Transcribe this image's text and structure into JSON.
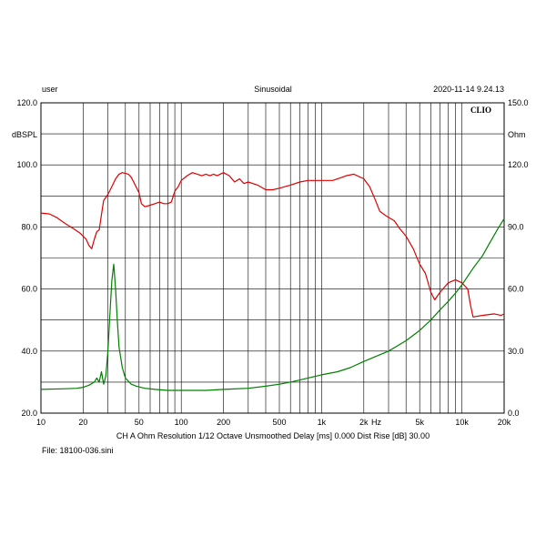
{
  "header": {
    "left": "user",
    "center": "Sinusoidal",
    "right": "2020-11-14 9.24.13"
  },
  "logo": "CLIO",
  "footer": {
    "settings": "CH A   Ohm   Resolution 1/12 Octave   Unsmoothed   Delay [ms] 0.000   Dist Rise [dB] 30.00",
    "file": "File: 18100-036.sini"
  },
  "colors": {
    "spl": "#e00000",
    "impedance": "#008000",
    "grid": "#000000"
  },
  "chart_data": {
    "type": "line",
    "xscale": "log",
    "xlim": [
      10,
      20000
    ],
    "grid": true,
    "xlabel_unit": "Hz",
    "x_ticks": [
      {
        "value": 10,
        "label": "10"
      },
      {
        "value": 20,
        "label": "20"
      },
      {
        "value": 50,
        "label": "50"
      },
      {
        "value": 100,
        "label": "100"
      },
      {
        "value": 200,
        "label": "200"
      },
      {
        "value": 500,
        "label": "500"
      },
      {
        "value": 1000,
        "label": "1k"
      },
      {
        "value": 2000,
        "label": "2k"
      },
      {
        "value": 5000,
        "label": "5k"
      },
      {
        "value": 10000,
        "label": "10k"
      },
      {
        "value": 20000,
        "label": "20k"
      }
    ],
    "y_left": {
      "label": "dBSPL",
      "ylim": [
        20,
        120
      ],
      "ticks": [
        {
          "value": 120,
          "label": "120.0"
        },
        {
          "value": 100,
          "label": "100.0"
        },
        {
          "value": 80,
          "label": "80.0"
        },
        {
          "value": 60,
          "label": "60.0"
        },
        {
          "value": 40,
          "label": "40.0"
        },
        {
          "value": 20,
          "label": "20.0"
        }
      ]
    },
    "y_right": {
      "label": "Ohm",
      "ylim": [
        0,
        150
      ],
      "ticks": [
        {
          "value": 150,
          "label": "150.0"
        },
        {
          "value": 120,
          "label": "120.0"
        },
        {
          "value": 90,
          "label": "90.0"
        },
        {
          "value": 60,
          "label": "60.0"
        },
        {
          "value": 30,
          "label": "30.0"
        },
        {
          "value": 0,
          "label": "0.0"
        }
      ]
    },
    "series": [
      {
        "axis": "left",
        "color": "#e00000",
        "points": [
          [
            10,
            84.5
          ],
          [
            11.5,
            84.2
          ],
          [
            13,
            83
          ],
          [
            15,
            81
          ],
          [
            17,
            79.5
          ],
          [
            19,
            78
          ],
          [
            21,
            76
          ],
          [
            22,
            74
          ],
          [
            23,
            73
          ],
          [
            24,
            76
          ],
          [
            25,
            78.5
          ],
          [
            26,
            79
          ],
          [
            27,
            84
          ],
          [
            28,
            88.5
          ],
          [
            30,
            90.5
          ],
          [
            32,
            93
          ],
          [
            34,
            95.5
          ],
          [
            36,
            97
          ],
          [
            38,
            97.5
          ],
          [
            42,
            97
          ],
          [
            44,
            96
          ],
          [
            47,
            93.5
          ],
          [
            50,
            91
          ],
          [
            52,
            87.5
          ],
          [
            55,
            86.5
          ],
          [
            60,
            87
          ],
          [
            65,
            87.5
          ],
          [
            70,
            88
          ],
          [
            75,
            87.5
          ],
          [
            80,
            87.5
          ],
          [
            85,
            88
          ],
          [
            90,
            91.5
          ],
          [
            95,
            93
          ],
          [
            100,
            95
          ],
          [
            110,
            96.5
          ],
          [
            120,
            97.5
          ],
          [
            130,
            97
          ],
          [
            140,
            96.5
          ],
          [
            150,
            97
          ],
          [
            160,
            96.5
          ],
          [
            170,
            97
          ],
          [
            180,
            96.5
          ],
          [
            200,
            97.5
          ],
          [
            220,
            96.5
          ],
          [
            240,
            94.5
          ],
          [
            260,
            95.5
          ],
          [
            280,
            94
          ],
          [
            300,
            94.5
          ],
          [
            350,
            93.5
          ],
          [
            400,
            92
          ],
          [
            450,
            92
          ],
          [
            500,
            92.5
          ],
          [
            600,
            93.5
          ],
          [
            700,
            94.5
          ],
          [
            800,
            95
          ],
          [
            1000,
            95
          ],
          [
            1200,
            95
          ],
          [
            1400,
            96
          ],
          [
            1500,
            96.5
          ],
          [
            1700,
            97
          ],
          [
            2000,
            95.5
          ],
          [
            2200,
            93
          ],
          [
            2400,
            89
          ],
          [
            2600,
            85
          ],
          [
            2900,
            83.5
          ],
          [
            3300,
            82
          ],
          [
            3600,
            79.5
          ],
          [
            4000,
            77
          ],
          [
            4500,
            73
          ],
          [
            5000,
            68
          ],
          [
            5500,
            65
          ],
          [
            6000,
            59
          ],
          [
            6400,
            56.5
          ],
          [
            7000,
            59
          ],
          [
            8000,
            62
          ],
          [
            9000,
            63
          ],
          [
            10000,
            62
          ],
          [
            11000,
            60
          ],
          [
            11500,
            55
          ],
          [
            12000,
            51
          ],
          [
            14000,
            51.5
          ],
          [
            17000,
            52
          ],
          [
            19000,
            51.5
          ],
          [
            20000,
            52
          ]
        ]
      },
      {
        "axis": "right",
        "color": "#008000",
        "points": [
          [
            10,
            11.5
          ],
          [
            15,
            11.8
          ],
          [
            18,
            12
          ],
          [
            20,
            12.5
          ],
          [
            22,
            13.5
          ],
          [
            24,
            15
          ],
          [
            25,
            17
          ],
          [
            26,
            15
          ],
          [
            27,
            20
          ],
          [
            28,
            14
          ],
          [
            29,
            18
          ],
          [
            30,
            30
          ],
          [
            31,
            48
          ],
          [
            32,
            64
          ],
          [
            33,
            72
          ],
          [
            34,
            60
          ],
          [
            35,
            45
          ],
          [
            36,
            32
          ],
          [
            38,
            22
          ],
          [
            40,
            17
          ],
          [
            44,
            14
          ],
          [
            48,
            13
          ],
          [
            55,
            12
          ],
          [
            65,
            11.5
          ],
          [
            80,
            11
          ],
          [
            100,
            11
          ],
          [
            150,
            11
          ],
          [
            200,
            11.5
          ],
          [
            300,
            12
          ],
          [
            400,
            13
          ],
          [
            500,
            14
          ],
          [
            600,
            15
          ],
          [
            700,
            16
          ],
          [
            800,
            17
          ],
          [
            1000,
            18.5
          ],
          [
            1300,
            20
          ],
          [
            1600,
            22
          ],
          [
            2000,
            25
          ],
          [
            3000,
            30
          ],
          [
            4000,
            35
          ],
          [
            5000,
            40
          ],
          [
            6000,
            45
          ],
          [
            7000,
            50
          ],
          [
            8000,
            54
          ],
          [
            9000,
            58
          ],
          [
            10000,
            62
          ],
          [
            12000,
            70
          ],
          [
            14000,
            76
          ],
          [
            16000,
            83
          ],
          [
            18000,
            89
          ],
          [
            20000,
            94
          ]
        ]
      }
    ]
  }
}
